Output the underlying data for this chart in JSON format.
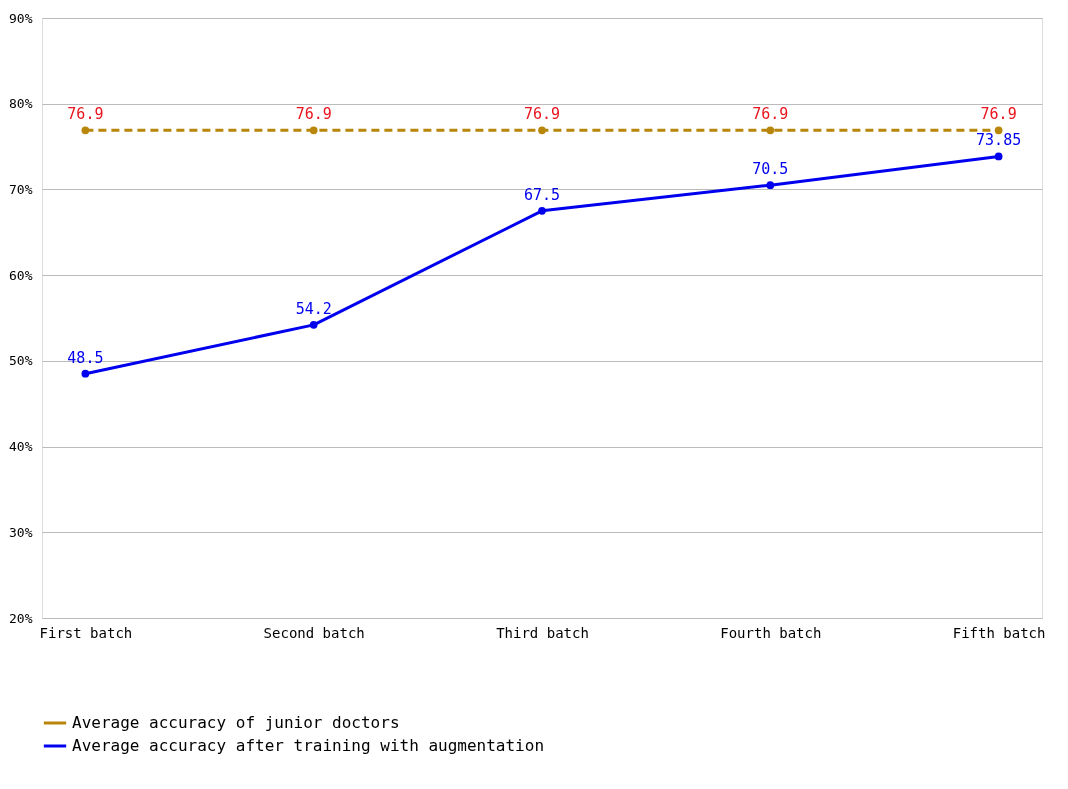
{
  "chart_data": {
    "type": "line",
    "categories": [
      "First batch",
      "Second batch",
      "Third batch",
      "Fourth batch",
      "Fifth batch"
    ],
    "series": [
      {
        "name": "Average accuracy of junior doctors",
        "color": "#b8860b",
        "line_style": "dashed",
        "values": [
          76.9,
          76.9,
          76.9,
          76.9,
          76.9
        ]
      },
      {
        "name": "Average accuracy after training with augmentation",
        "color": "#0000ee",
        "line_style": "solid",
        "values": [
          48.5,
          54.2,
          67.5,
          70.5,
          73.85
        ]
      }
    ],
    "ylim": [
      20,
      90
    ],
    "yticks": [
      {
        "value": 20,
        "label": "20%"
      },
      {
        "value": 30,
        "label": "30%"
      },
      {
        "value": 40,
        "label": "40%"
      },
      {
        "value": 50,
        "label": "50%"
      },
      {
        "value": 60,
        "label": "60%"
      },
      {
        "value": 70,
        "label": "70%"
      },
      {
        "value": 80,
        "label": "80%"
      },
      {
        "value": 90,
        "label": "90%"
      }
    ],
    "grid": "y",
    "legend": "bottom",
    "marker": "circle",
    "data_labels": true
  }
}
